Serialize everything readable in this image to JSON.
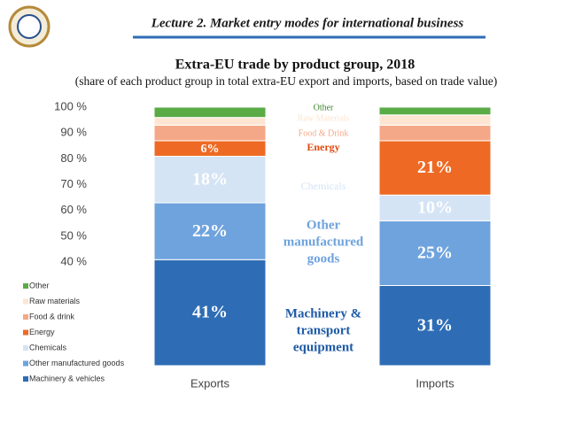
{
  "header": {
    "title": "Lecture 2. Market entry modes for international business"
  },
  "chart_data": {
    "type": "stacked-bar",
    "title": "Extra-EU trade by product group, 2018",
    "subtitle": "(share of each product group in total extra-EU export and imports, based on trade value)",
    "categories": [
      "Exports",
      "Imports"
    ],
    "ylim": [
      0,
      100
    ],
    "yticks": [
      {
        "value": 40,
        "label": "40 %"
      },
      {
        "value": 50,
        "label": "50 %"
      },
      {
        "value": 60,
        "label": "60 %"
      },
      {
        "value": 70,
        "label": "70 %"
      },
      {
        "value": 80,
        "label": "80 %"
      },
      {
        "value": 90,
        "label": "90 %"
      },
      {
        "value": 100,
        "label": "100 %"
      }
    ],
    "series": [
      {
        "name": "Machinery & vehicles",
        "color": "#2e6db5",
        "values": [
          41,
          31
        ],
        "value_labels": [
          "41%",
          "31%"
        ]
      },
      {
        "name": "Other manufactured goods",
        "color": "#6fa3dd",
        "values": [
          22,
          25
        ],
        "value_labels": [
          "22%",
          "25%"
        ]
      },
      {
        "name": "Chemicals",
        "color": "#d5e4f5",
        "values": [
          18,
          10
        ],
        "value_labels": [
          "18%",
          "10%"
        ]
      },
      {
        "name": "Energy",
        "color": "#ee6a24",
        "values": [
          6,
          21
        ],
        "value_labels": [
          "6%",
          "21%"
        ]
      },
      {
        "name": "Food & drink",
        "color": "#f4a887",
        "values": [
          6,
          6
        ],
        "value_labels": [
          null,
          null
        ]
      },
      {
        "name": "Raw materials",
        "color": "#fde5d2",
        "values": [
          3,
          4
        ],
        "value_labels": [
          null,
          null
        ]
      },
      {
        "name": "Other",
        "color": "#5aab46",
        "values": [
          4,
          3
        ],
        "value_labels": [
          null,
          null
        ]
      }
    ],
    "annotations": [
      {
        "series": 6,
        "lines": [
          "Other"
        ]
      },
      {
        "series": 5,
        "lines": [
          "Raw Materials"
        ]
      },
      {
        "series": 4,
        "lines": [
          "Food & Drink"
        ]
      },
      {
        "series": 3,
        "lines": [
          "Energy"
        ]
      },
      {
        "series": 2,
        "lines": [
          "Chemicals"
        ]
      },
      {
        "series": 1,
        "lines": [
          "Other",
          "manufactured",
          "goods"
        ]
      },
      {
        "series": 0,
        "lines": [
          "Machinery &",
          "transport",
          "equipment"
        ]
      }
    ]
  }
}
